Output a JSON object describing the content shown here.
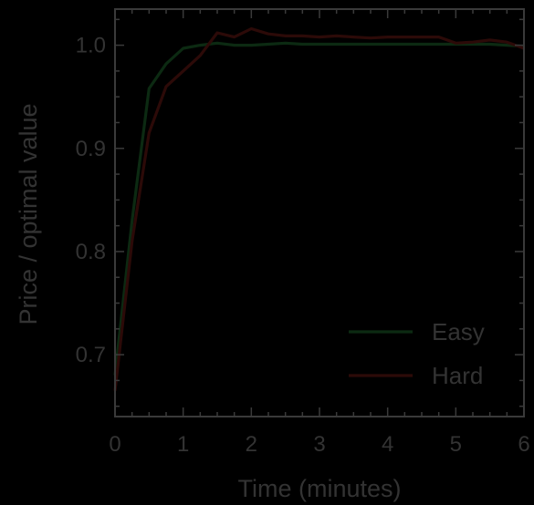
{
  "colors": {
    "background": "#000000",
    "axis": "#3a3a3a",
    "text": "#333333"
  },
  "chart_data": {
    "type": "line",
    "title": "",
    "xlabel": "Time (minutes)",
    "ylabel": "Price / optimal value",
    "xlim": [
      0,
      6
    ],
    "ylim": [
      0.64,
      1.035
    ],
    "xticks": [
      0,
      1,
      2,
      3,
      4,
      5,
      6
    ],
    "xtick_labels": [
      "0",
      "1",
      "2",
      "3",
      "4",
      "5",
      "6"
    ],
    "yticks": [
      0.7,
      0.8,
      0.9,
      1.0
    ],
    "ytick_labels": [
      "0.7",
      "0.8",
      "0.9",
      "1.0"
    ],
    "grid": false,
    "legend_position": "lower-right",
    "series": [
      {
        "name": "Easy",
        "color": "#0c2a12",
        "x": [
          0,
          0.25,
          0.5,
          0.75,
          1.0,
          1.25,
          1.5,
          1.75,
          2.0,
          2.25,
          2.5,
          2.75,
          3.0,
          3.25,
          3.5,
          3.75,
          4.0,
          4.25,
          4.5,
          4.75,
          5.0,
          5.25,
          5.5,
          5.75,
          6.0
        ],
        "values": [
          0.68,
          0.83,
          0.958,
          0.982,
          0.997,
          1.0,
          1.002,
          1.0,
          1.0,
          1.001,
          1.002,
          1.001,
          1.001,
          1.001,
          1.001,
          1.001,
          1.001,
          1.001,
          1.001,
          1.001,
          1.001,
          1.001,
          1.001,
          1.0,
          0.999
        ]
      },
      {
        "name": "Hard",
        "color": "#2c0a08",
        "x": [
          0,
          0.25,
          0.5,
          0.75,
          1.0,
          1.25,
          1.5,
          1.75,
          2.0,
          2.25,
          2.5,
          2.75,
          3.0,
          3.25,
          3.5,
          3.75,
          4.0,
          4.25,
          4.5,
          4.75,
          5.0,
          5.25,
          5.5,
          5.75,
          6.0
        ],
        "values": [
          0.665,
          0.81,
          0.915,
          0.96,
          0.975,
          0.99,
          1.012,
          1.008,
          1.016,
          1.011,
          1.009,
          1.009,
          1.008,
          1.009,
          1.008,
          1.007,
          1.008,
          1.008,
          1.008,
          1.008,
          1.002,
          1.003,
          1.005,
          1.003,
          0.997
        ]
      }
    ]
  }
}
